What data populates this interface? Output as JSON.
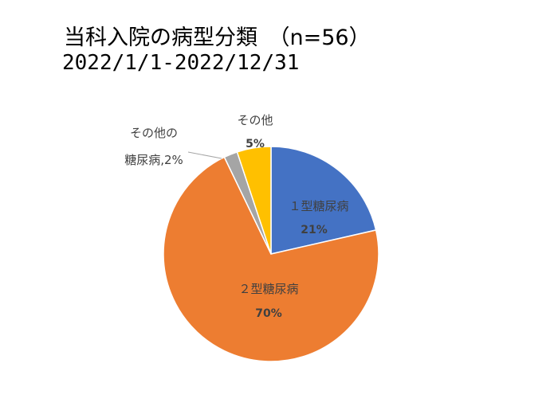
{
  "title": {
    "line1": "当科入院の病型分類　（n=56）",
    "line2": "2022/1/1-2022/12/31"
  },
  "chart_data": {
    "type": "pie",
    "start_angle_deg": 0,
    "direction": "clockwise",
    "slices": [
      {
        "label": "１型糖尿病",
        "percent_label": "21%",
        "value": 21,
        "color": "#4472C4"
      },
      {
        "label": "２型糖尿病",
        "percent_label": "70%",
        "value": 70,
        "color": "#ED7D31"
      },
      {
        "label": "その他の糖尿病",
        "percent_label": "2%",
        "value": 2,
        "color": "#A5A5A5"
      },
      {
        "label": "その他",
        "percent_label": "5%",
        "value": 5,
        "color": "#FFC000"
      }
    ],
    "outside_labels": {
      "other_dm_line1": "その他の",
      "other_dm_line2": "糖尿病,2%",
      "other_line1": "その他",
      "other_line2": "5%"
    }
  }
}
